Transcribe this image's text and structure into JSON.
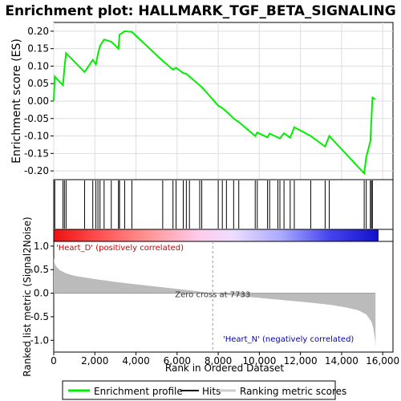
{
  "chart_data": {
    "type": "line",
    "title": "Enrichment plot: HALLMARK_TGF_BETA_SIGNALING",
    "es_panel": {
      "ylabel": "Enrichment score (ES)",
      "ylim": [
        -0.225,
        0.225
      ],
      "yticks": [
        -0.2,
        -0.15,
        -0.1,
        -0.05,
        0.0,
        0.05,
        0.1,
        0.15,
        0.2
      ],
      "ytick_labels": [
        "-0.20",
        "-0.15",
        "-0.10",
        "-0.05",
        "0.00",
        "0.05",
        "0.10",
        "0.15",
        "0.20"
      ],
      "grid": true,
      "series": [
        {
          "name": "Enrichment profile",
          "color": "#00ee00",
          "x": [
            0,
            50,
            450,
            520,
            600,
            1500,
            1900,
            2050,
            2150,
            2250,
            2450,
            2800,
            3150,
            3200,
            3450,
            3800,
            5300,
            5800,
            5950,
            6300,
            6450,
            7100,
            7200,
            8000,
            8200,
            8400,
            8750,
            9000,
            9800,
            9900,
            10400,
            10500,
            11000,
            11200,
            11500,
            11700,
            12500,
            13200,
            13400,
            15100,
            15200,
            15400,
            15450,
            15500,
            15650
          ],
          "y": [
            0.0,
            0.07,
            0.045,
            0.095,
            0.137,
            0.083,
            0.118,
            0.105,
            0.135,
            0.158,
            0.176,
            0.17,
            0.15,
            0.19,
            0.2,
            0.198,
            0.115,
            0.09,
            0.095,
            0.08,
            0.078,
            0.045,
            0.04,
            -0.013,
            -0.02,
            -0.03,
            -0.05,
            -0.06,
            -0.1,
            -0.09,
            -0.104,
            -0.093,
            -0.107,
            -0.092,
            -0.105,
            -0.075,
            -0.1,
            -0.13,
            -0.1,
            -0.207,
            -0.16,
            -0.115,
            -0.055,
            0.01,
            0.005
          ]
        }
      ]
    },
    "hits_panel": {
      "series_name": "Hits",
      "hit_positions": [
        50,
        450,
        520,
        600,
        1500,
        1900,
        2050,
        2150,
        2250,
        2450,
        2800,
        3150,
        3200,
        3450,
        3800,
        5300,
        5800,
        5950,
        6300,
        6450,
        6600,
        7100,
        7200,
        8000,
        8200,
        8400,
        8750,
        9000,
        9800,
        9900,
        10400,
        10500,
        10900,
        11000,
        11200,
        11500,
        11700,
        12500,
        13200,
        13400,
        15100,
        15200,
        15400,
        15450,
        15500
      ]
    },
    "rank_panel": {
      "series_name": "Ranking metric scores",
      "ylabel": "Ranked list metric (Signal2Noise)",
      "xlabel": "Rank in Ordered Dataset",
      "ylim": [
        -1.25,
        1.1
      ],
      "yticks": [
        -1.0,
        -0.5,
        0.0,
        0.5,
        1.0
      ],
      "ytick_labels": [
        "-1.0",
        "-0.5",
        "0.0",
        "0.5",
        "1.0"
      ],
      "xlim": [
        0,
        16500
      ],
      "xticks": [
        0,
        2000,
        4000,
        6000,
        8000,
        10000,
        12000,
        14000,
        16000
      ],
      "xtick_labels": [
        "0",
        "2,000",
        "4,000",
        "6,000",
        "8,000",
        "10,000",
        "12,000",
        "14,000",
        "16,000"
      ],
      "metric_curve": {
        "x": [
          0,
          50,
          150,
          300,
          600,
          1000,
          2000,
          3000,
          4000,
          5000,
          6000,
          7000,
          7733,
          8500,
          9500,
          10500,
          11500,
          12500,
          13500,
          14200,
          14800,
          15200,
          15450,
          15550,
          15630,
          15650
        ],
        "y": [
          0.75,
          0.62,
          0.55,
          0.49,
          0.42,
          0.37,
          0.3,
          0.24,
          0.19,
          0.14,
          0.09,
          0.04,
          0.0,
          -0.04,
          -0.08,
          -0.12,
          -0.16,
          -0.2,
          -0.25,
          -0.3,
          -0.36,
          -0.45,
          -0.6,
          -0.75,
          -1.0,
          -1.15
        ]
      },
      "zero_cross_label": "Zero cross at 7733",
      "zero_cross_rank": 7733,
      "pos_label": "'Heart_D' (positively correlated)",
      "neg_label": "'Heart_N' (negatively correlated)",
      "pos_label_color": "#cc0000",
      "neg_label_color": "#0000cc"
    },
    "color_bar": {
      "stops": [
        "#ee1111",
        "#ff5555",
        "#ff9999",
        "#ffccee",
        "#eeddff",
        "#aaaaff",
        "#4444ee",
        "#1111cc"
      ]
    },
    "total_ranks": 15650
  },
  "legend": {
    "items": [
      {
        "label": "Enrichment profile",
        "color": "#00ee00"
      },
      {
        "label": "Hits",
        "color": "#000000"
      },
      {
        "label": "Ranking metric scores",
        "color": "#cccccc"
      }
    ]
  }
}
